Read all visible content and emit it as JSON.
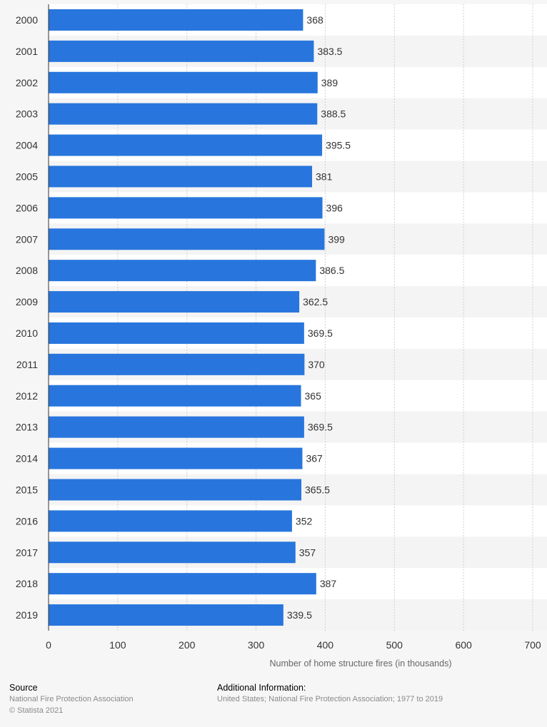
{
  "chart_data": {
    "type": "bar",
    "orientation": "horizontal",
    "categories": [
      "2000",
      "2001",
      "2002",
      "2003",
      "2004",
      "2005",
      "2006",
      "2007",
      "2008",
      "2009",
      "2010",
      "2011",
      "2012",
      "2013",
      "2014",
      "2015",
      "2016",
      "2017",
      "2018",
      "2019"
    ],
    "values": [
      368,
      383.5,
      389,
      388.5,
      395.5,
      381,
      396,
      399,
      386.5,
      362.5,
      369.5,
      370,
      365,
      369.5,
      367,
      365.5,
      352,
      357,
      387,
      339.5
    ],
    "value_labels": [
      "368",
      "383.5",
      "389",
      "388.5",
      "395.5",
      "381",
      "396",
      "399",
      "386.5",
      "362.5",
      "369.5",
      "370",
      "365",
      "369.5",
      "367",
      "365.5",
      "352",
      "357",
      "387",
      "339.5"
    ],
    "xlabel": "Number of home structure fires (in thousands)",
    "ylabel": "",
    "xlim": [
      0,
      700
    ],
    "xticks": [
      "0",
      "100",
      "200",
      "300",
      "400",
      "500",
      "600",
      "700"
    ],
    "grid": true,
    "bar_color": "#2876dd"
  },
  "footer": {
    "source_heading": "Source",
    "source_text": "National Fire Protection Association",
    "copyright": "© Statista 2021",
    "info_heading": "Additional Information:",
    "info_text": "United States; National Fire Protection Association; 1977 to 2019"
  }
}
